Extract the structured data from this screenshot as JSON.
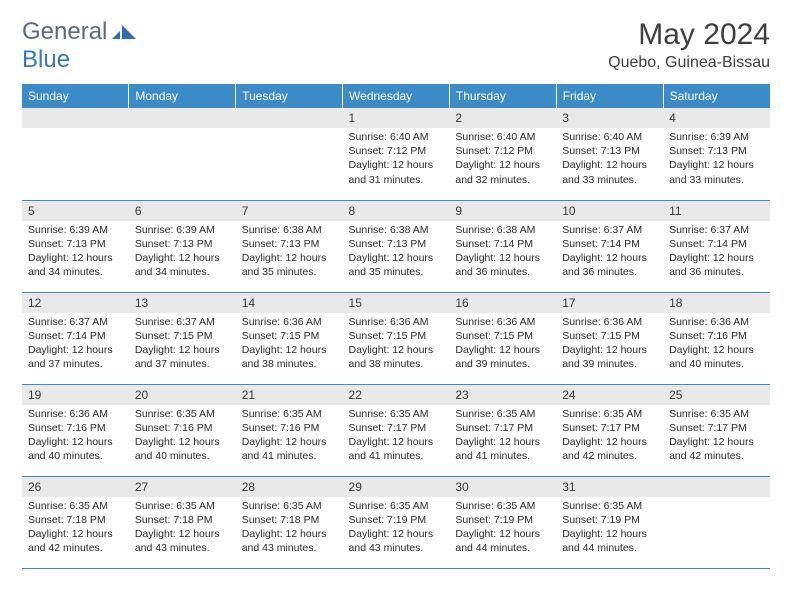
{
  "brand": {
    "general": "General",
    "blue": "Blue",
    "logo_color": "#2b6db0"
  },
  "title": "May 2024",
  "location": "Quebo, Guinea-Bissau",
  "colors": {
    "header_bg": "#3b8bc9",
    "header_fg": "#ffffff",
    "daynum_bg": "#e9e9e9",
    "rule": "#3b8bc9"
  },
  "day_headers": [
    "Sunday",
    "Monday",
    "Tuesday",
    "Wednesday",
    "Thursday",
    "Friday",
    "Saturday"
  ],
  "weeks": [
    [
      null,
      null,
      null,
      {
        "n": "1",
        "sr": "6:40 AM",
        "ss": "7:12 PM",
        "dl": "12 hours and 31 minutes."
      },
      {
        "n": "2",
        "sr": "6:40 AM",
        "ss": "7:12 PM",
        "dl": "12 hours and 32 minutes."
      },
      {
        "n": "3",
        "sr": "6:40 AM",
        "ss": "7:13 PM",
        "dl": "12 hours and 33 minutes."
      },
      {
        "n": "4",
        "sr": "6:39 AM",
        "ss": "7:13 PM",
        "dl": "12 hours and 33 minutes."
      }
    ],
    [
      {
        "n": "5",
        "sr": "6:39 AM",
        "ss": "7:13 PM",
        "dl": "12 hours and 34 minutes."
      },
      {
        "n": "6",
        "sr": "6:39 AM",
        "ss": "7:13 PM",
        "dl": "12 hours and 34 minutes."
      },
      {
        "n": "7",
        "sr": "6:38 AM",
        "ss": "7:13 PM",
        "dl": "12 hours and 35 minutes."
      },
      {
        "n": "8",
        "sr": "6:38 AM",
        "ss": "7:13 PM",
        "dl": "12 hours and 35 minutes."
      },
      {
        "n": "9",
        "sr": "6:38 AM",
        "ss": "7:14 PM",
        "dl": "12 hours and 36 minutes."
      },
      {
        "n": "10",
        "sr": "6:37 AM",
        "ss": "7:14 PM",
        "dl": "12 hours and 36 minutes."
      },
      {
        "n": "11",
        "sr": "6:37 AM",
        "ss": "7:14 PM",
        "dl": "12 hours and 36 minutes."
      }
    ],
    [
      {
        "n": "12",
        "sr": "6:37 AM",
        "ss": "7:14 PM",
        "dl": "12 hours and 37 minutes."
      },
      {
        "n": "13",
        "sr": "6:37 AM",
        "ss": "7:15 PM",
        "dl": "12 hours and 37 minutes."
      },
      {
        "n": "14",
        "sr": "6:36 AM",
        "ss": "7:15 PM",
        "dl": "12 hours and 38 minutes."
      },
      {
        "n": "15",
        "sr": "6:36 AM",
        "ss": "7:15 PM",
        "dl": "12 hours and 38 minutes."
      },
      {
        "n": "16",
        "sr": "6:36 AM",
        "ss": "7:15 PM",
        "dl": "12 hours and 39 minutes."
      },
      {
        "n": "17",
        "sr": "6:36 AM",
        "ss": "7:15 PM",
        "dl": "12 hours and 39 minutes."
      },
      {
        "n": "18",
        "sr": "6:36 AM",
        "ss": "7:16 PM",
        "dl": "12 hours and 40 minutes."
      }
    ],
    [
      {
        "n": "19",
        "sr": "6:36 AM",
        "ss": "7:16 PM",
        "dl": "12 hours and 40 minutes."
      },
      {
        "n": "20",
        "sr": "6:35 AM",
        "ss": "7:16 PM",
        "dl": "12 hours and 40 minutes."
      },
      {
        "n": "21",
        "sr": "6:35 AM",
        "ss": "7:16 PM",
        "dl": "12 hours and 41 minutes."
      },
      {
        "n": "22",
        "sr": "6:35 AM",
        "ss": "7:17 PM",
        "dl": "12 hours and 41 minutes."
      },
      {
        "n": "23",
        "sr": "6:35 AM",
        "ss": "7:17 PM",
        "dl": "12 hours and 41 minutes."
      },
      {
        "n": "24",
        "sr": "6:35 AM",
        "ss": "7:17 PM",
        "dl": "12 hours and 42 minutes."
      },
      {
        "n": "25",
        "sr": "6:35 AM",
        "ss": "7:17 PM",
        "dl": "12 hours and 42 minutes."
      }
    ],
    [
      {
        "n": "26",
        "sr": "6:35 AM",
        "ss": "7:18 PM",
        "dl": "12 hours and 42 minutes."
      },
      {
        "n": "27",
        "sr": "6:35 AM",
        "ss": "7:18 PM",
        "dl": "12 hours and 43 minutes."
      },
      {
        "n": "28",
        "sr": "6:35 AM",
        "ss": "7:18 PM",
        "dl": "12 hours and 43 minutes."
      },
      {
        "n": "29",
        "sr": "6:35 AM",
        "ss": "7:19 PM",
        "dl": "12 hours and 43 minutes."
      },
      {
        "n": "30",
        "sr": "6:35 AM",
        "ss": "7:19 PM",
        "dl": "12 hours and 44 minutes."
      },
      {
        "n": "31",
        "sr": "6:35 AM",
        "ss": "7:19 PM",
        "dl": "12 hours and 44 minutes."
      },
      null
    ]
  ],
  "labels": {
    "sunrise": "Sunrise: ",
    "sunset": "Sunset: ",
    "daylight": "Daylight: "
  }
}
